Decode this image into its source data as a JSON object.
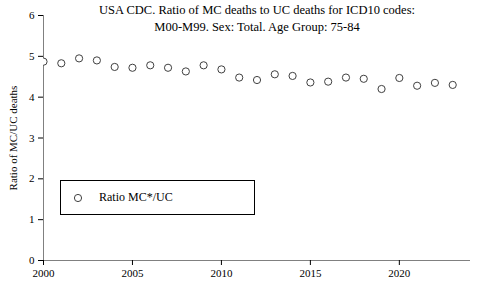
{
  "chart_data": {
    "type": "scatter",
    "title": "USA CDC. Ratio of MC deaths to UC deaths for ICD10 codes:\nM00-M99. Sex: Total. Age Group: 75-84",
    "y_label": "Ratio of MC/UC deaths",
    "x": [
      2000,
      2001,
      2002,
      2003,
      2004,
      2005,
      2006,
      2007,
      2008,
      2009,
      2010,
      2011,
      2012,
      2013,
      2014,
      2015,
      2016,
      2017,
      2018,
      2019,
      2020,
      2021,
      2022,
      2023
    ],
    "series": [
      {
        "name": "Ratio MC*/UC",
        "color": "#404040",
        "marker": "open circle",
        "values": [
          4.87,
          4.83,
          4.95,
          4.9,
          4.74,
          4.72,
          4.78,
          4.72,
          4.63,
          4.78,
          4.68,
          4.48,
          4.42,
          4.56,
          4.52,
          4.36,
          4.38,
          4.48,
          4.45,
          4.2,
          4.47,
          4.28,
          4.35,
          4.3
        ]
      }
    ],
    "xlim": [
      2000,
      2024
    ],
    "xticks": [
      2000,
      2005,
      2010,
      2015,
      2020
    ],
    "ylim": [
      0,
      6
    ],
    "yticks": [
      0,
      1,
      2,
      3,
      4,
      5,
      6
    ],
    "grid": false,
    "legend": "lower left"
  }
}
